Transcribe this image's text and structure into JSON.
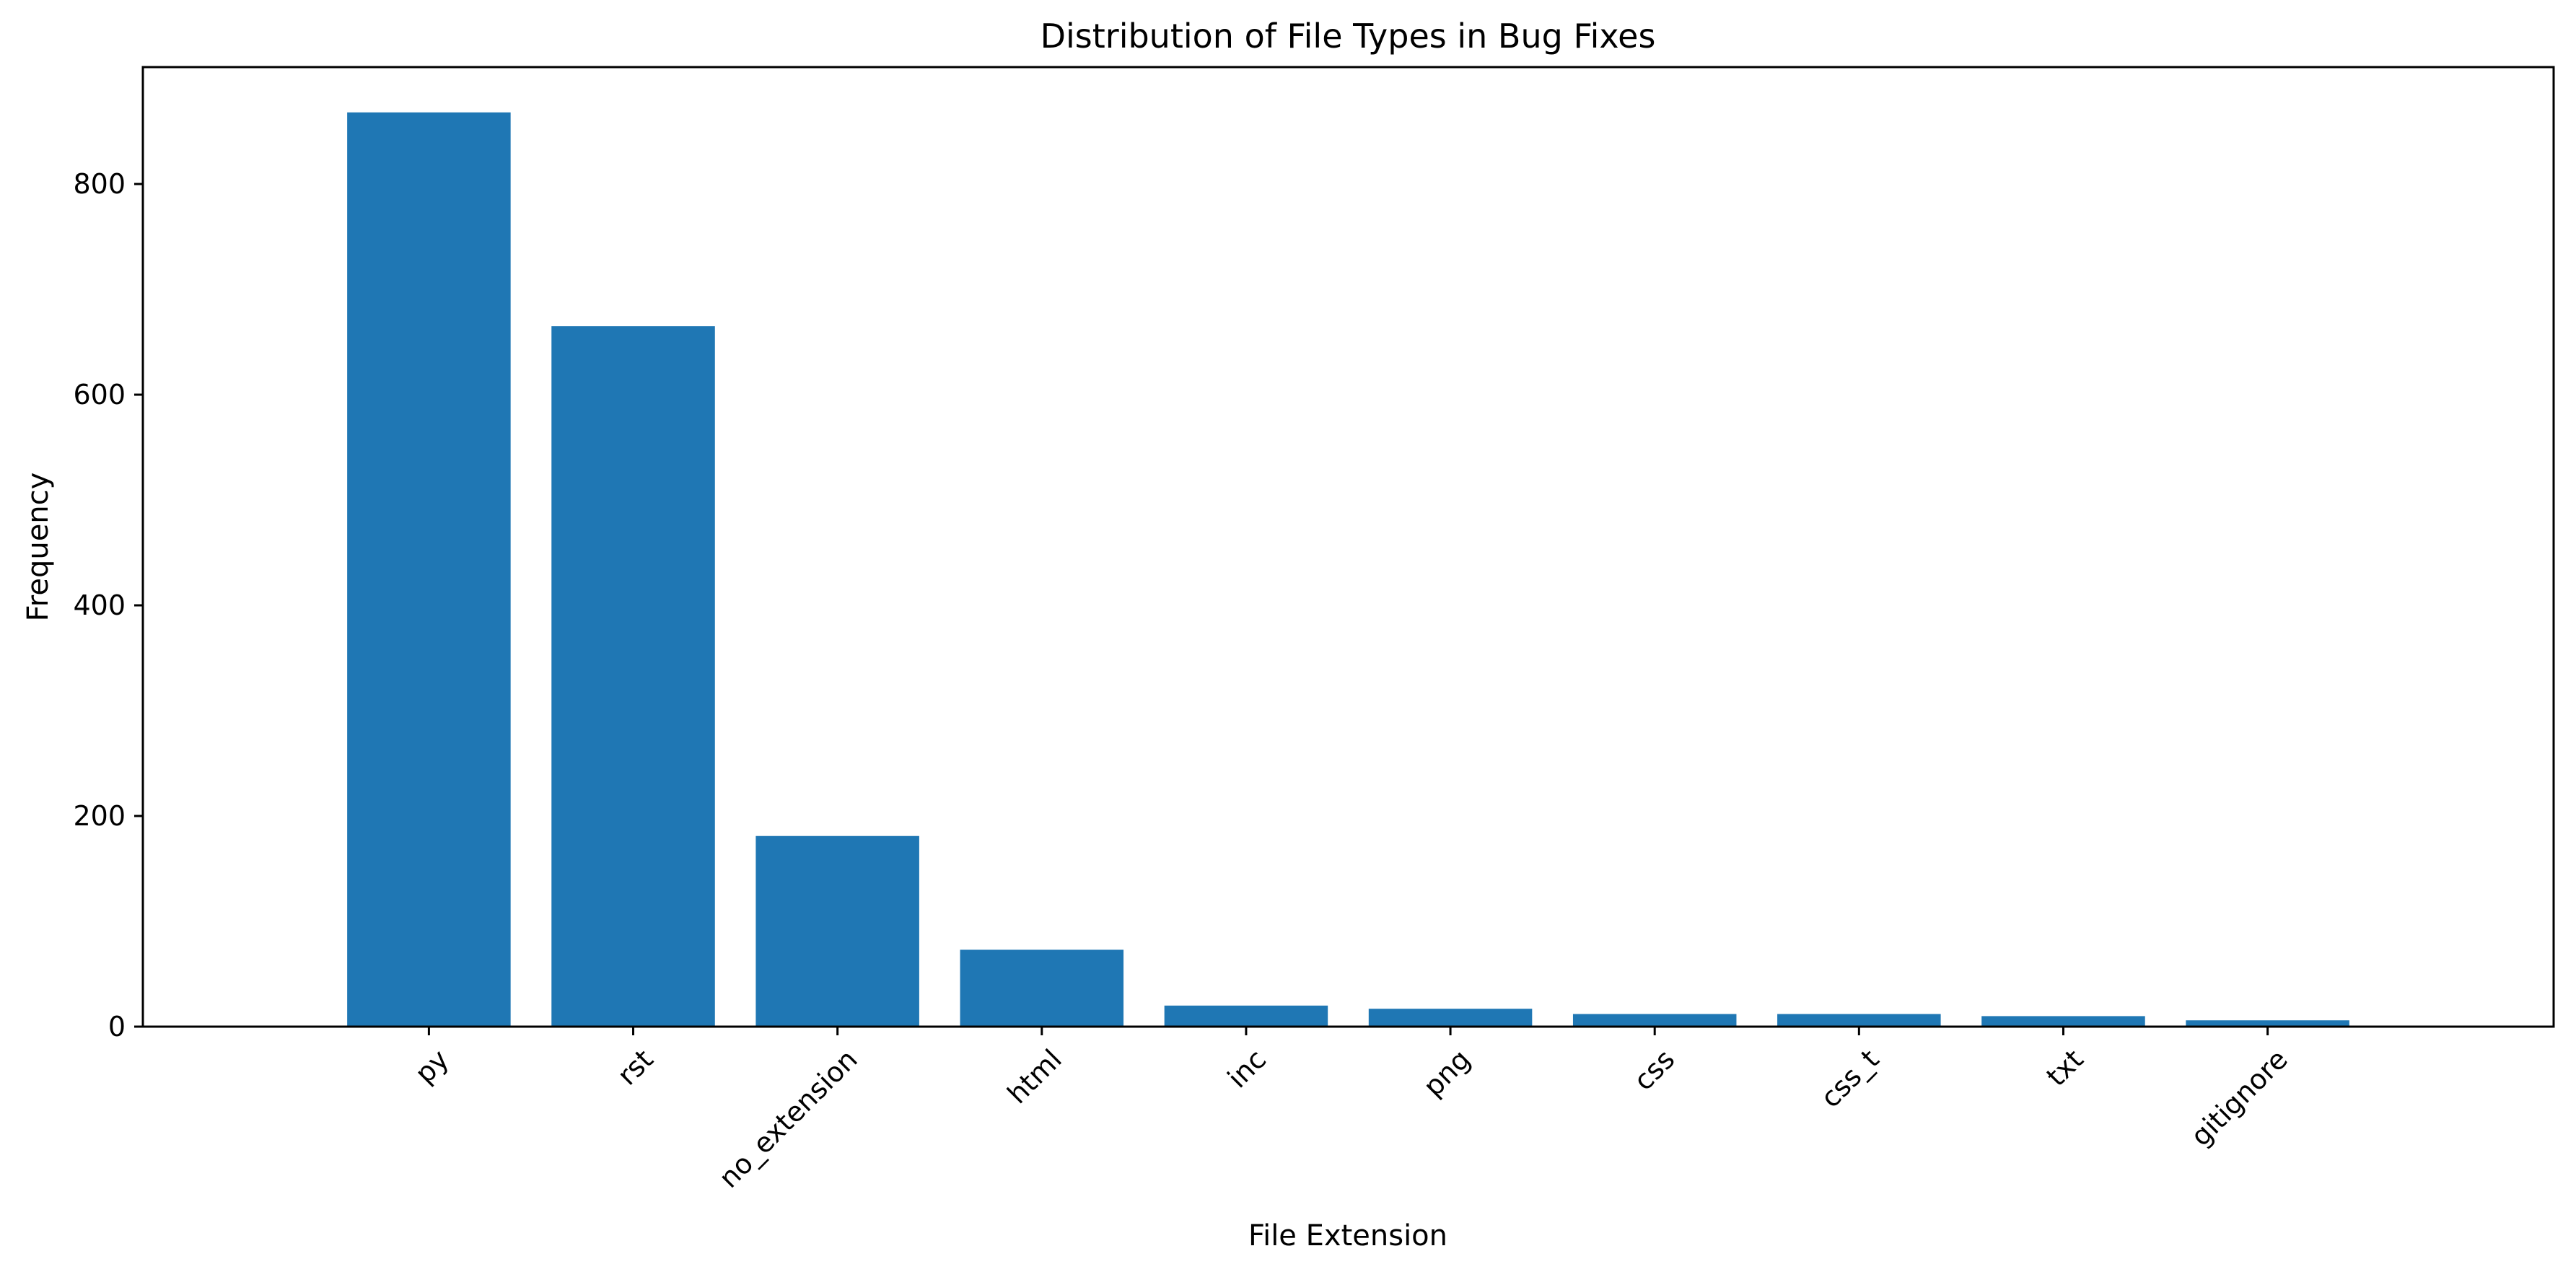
{
  "chart_data": {
    "type": "bar",
    "title": "Distribution of File Types in Bug Fixes",
    "xlabel": "File Extension",
    "ylabel": "Frequency",
    "categories": [
      "py",
      "rst",
      "no_extension",
      "html",
      "inc",
      "png",
      "css",
      "css_t",
      "txt",
      "gitignore"
    ],
    "values": [
      868,
      665,
      181,
      73,
      20,
      17,
      12,
      12,
      10,
      6
    ],
    "ylim": [
      0,
      911
    ],
    "yticks": [
      0,
      200,
      400,
      600,
      800
    ],
    "grid": false,
    "bar_color": "#1f77b4"
  }
}
